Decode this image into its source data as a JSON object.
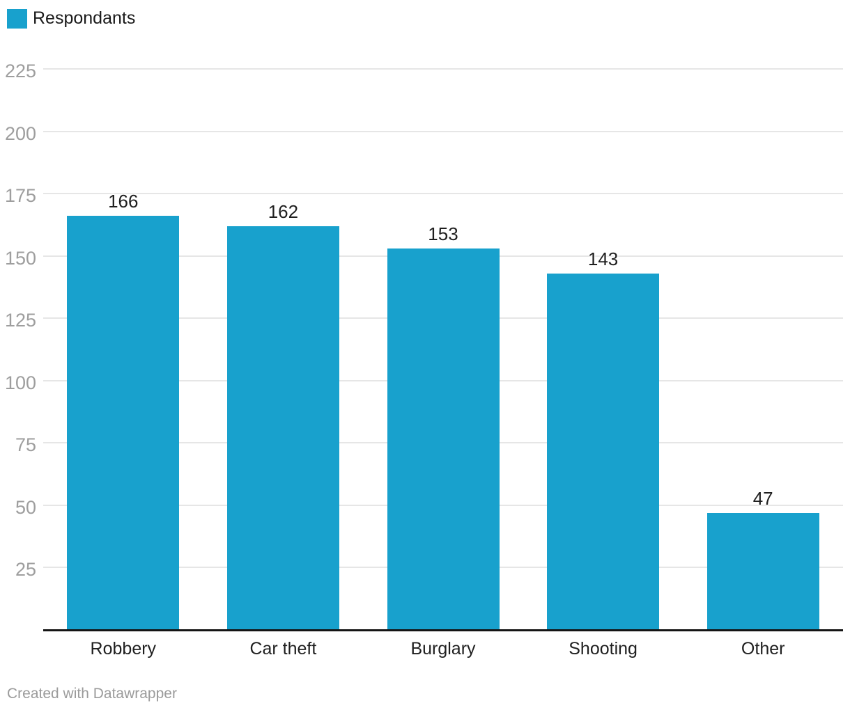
{
  "legend": {
    "label": "Respondants"
  },
  "footer": {
    "credit": "Created with Datawrapper"
  },
  "chart_data": {
    "type": "bar",
    "categories": [
      "Robbery",
      "Car theft",
      "Burglary",
      "Shooting",
      "Other"
    ],
    "values": [
      166,
      162,
      153,
      143,
      47
    ],
    "series_name": "Respondants",
    "value_labels_shown": true,
    "yticks": [
      25,
      50,
      75,
      100,
      125,
      150,
      175,
      200,
      225
    ],
    "ylim": [
      0,
      225
    ],
    "grid": true,
    "legend_position": "top-left"
  },
  "colors": {
    "bar": "#18a1cd",
    "grid": "#e6e6e6",
    "axis_line": "#141414",
    "tick_label": "#9e9e9e",
    "value_label": "#1f1f1f",
    "category_label": "#1f1f1f",
    "credit": "#9b9b9b"
  }
}
